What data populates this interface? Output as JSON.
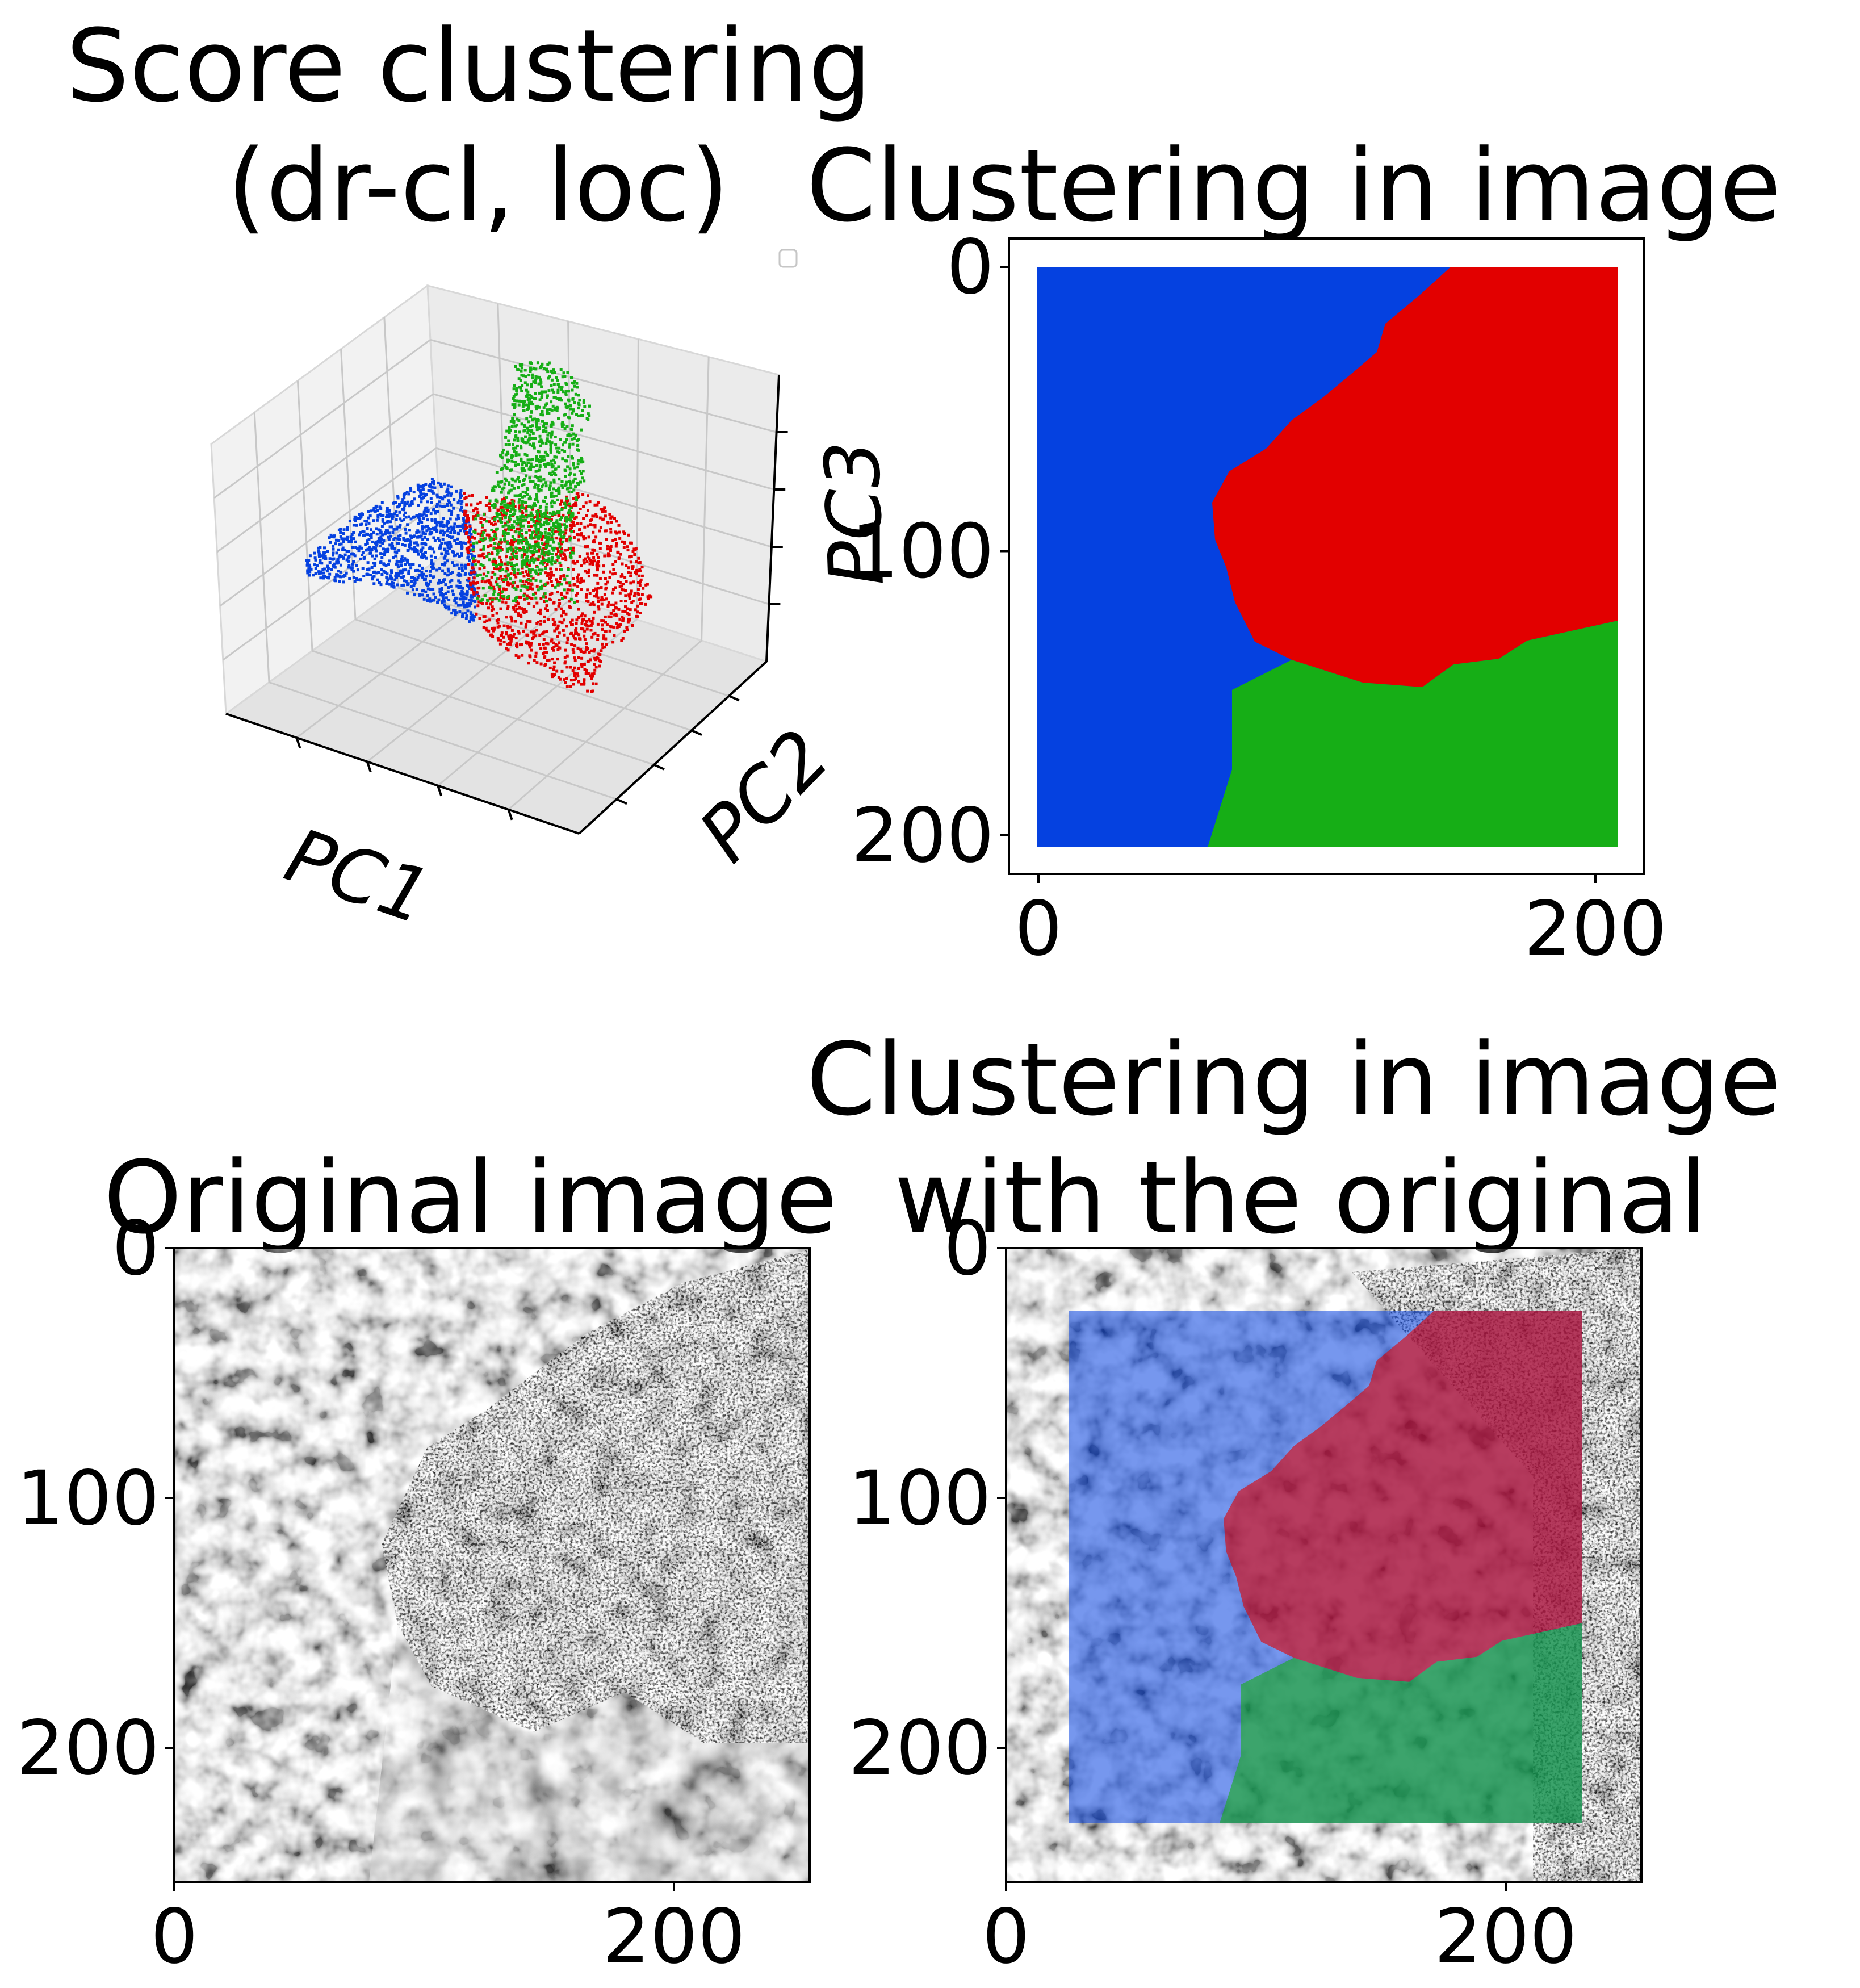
{
  "figure": {
    "colors": {
      "blue": "#0541e0",
      "red": "#e20000",
      "green": "#16ae16",
      "axis": "#000000",
      "pane": "#f2f2f2",
      "grid": "#c8c8c8"
    }
  },
  "chart_data": [
    {
      "type": "scatter",
      "subtype": "3d-scatter",
      "title_line1": "Score clustering",
      "title_line2": "(dr-cl, loc)",
      "xlabel": "PC1",
      "ylabel": "PC2",
      "zlabel": "PC3",
      "legend": "empty legend box, upper right",
      "grid": true,
      "series": [
        {
          "color": "#0541e0",
          "region": "left lobe"
        },
        {
          "color": "#e20000",
          "region": "center-right lobe"
        },
        {
          "color": "#16ae16",
          "region": "upper spike and center"
        }
      ]
    },
    {
      "type": "heatmap",
      "title": "Clustering in image",
      "xlim": [
        0,
        205
      ],
      "ylim": [
        205,
        0
      ],
      "xticks": [
        "0",
        "200"
      ],
      "yticks": [
        "0",
        "100",
        "200"
      ],
      "grid": false,
      "regions": [
        {
          "color": "#0541e0",
          "position": "left"
        },
        {
          "color": "#e20000",
          "position": "upper right"
        },
        {
          "color": "#16ae16",
          "position": "lower right"
        }
      ]
    },
    {
      "type": "heatmap",
      "subtype": "grayscale image",
      "title": "Original image",
      "xlim": [
        0,
        256
      ],
      "ylim": [
        256,
        0
      ],
      "xticks": [
        "0",
        "200"
      ],
      "yticks": [
        "0",
        "100",
        "200"
      ],
      "grid": false
    },
    {
      "type": "heatmap",
      "subtype": "grayscale image with translucent cluster overlay",
      "title_line1": "Clustering in image",
      "title_line2": "with the original",
      "xlim": [
        0,
        256
      ],
      "ylim": [
        256,
        0
      ],
      "overlay_extent": [
        25,
        231,
        25,
        231
      ],
      "xticks": [
        "0",
        "200"
      ],
      "yticks": [
        "0",
        "100",
        "200"
      ],
      "grid": false
    }
  ]
}
